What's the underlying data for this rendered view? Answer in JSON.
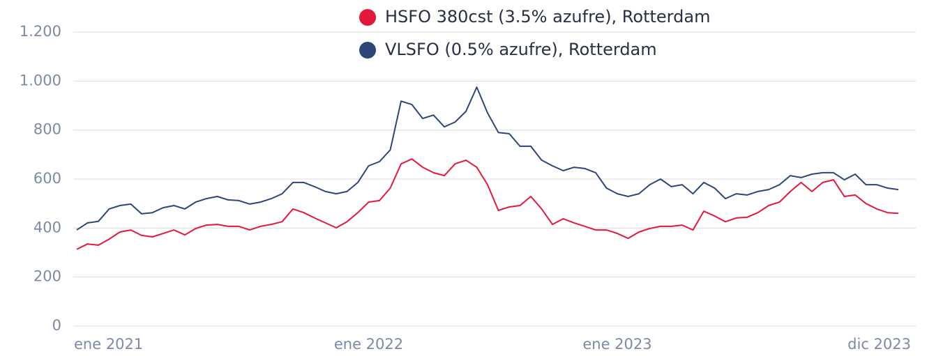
{
  "chart_data": {
    "type": "line",
    "categories": [
      "ene 2021",
      null,
      null,
      null,
      null,
      null,
      null,
      null,
      null,
      null,
      null,
      null,
      null,
      null,
      null,
      null,
      null,
      null,
      null,
      null,
      null,
      null,
      null,
      null,
      null,
      null,
      null,
      "ene 2022",
      null,
      null,
      null,
      null,
      null,
      null,
      null,
      null,
      null,
      null,
      null,
      null,
      null,
      null,
      null,
      null,
      null,
      null,
      null,
      null,
      null,
      null,
      "ene 2023",
      null,
      null,
      null,
      null,
      null,
      null,
      null,
      null,
      null,
      null,
      null,
      null,
      null,
      null,
      null,
      null,
      null,
      null,
      null,
      null,
      null,
      null,
      null,
      null,
      null,
      "dic 2023"
    ],
    "series": [
      {
        "name": "HSFO 380cst (3.5% azufre), Rotterdam",
        "color": "#e5173c",
        "values": [
          313,
          335,
          330,
          355,
          384,
          392,
          370,
          364,
          378,
          392,
          372,
          398,
          412,
          415,
          407,
          407,
          392,
          407,
          415,
          426,
          478,
          463,
          441,
          421,
          401,
          426,
          463,
          506,
          512,
          563,
          662,
          682,
          648,
          626,
          614,
          662,
          677,
          648,
          577,
          472,
          486,
          492,
          529,
          478,
          415,
          438,
          421,
          407,
          392,
          392,
          378,
          358,
          384,
          398,
          407,
          407,
          412,
          392,
          469,
          449,
          426,
          441,
          444,
          463,
          492,
          506,
          549,
          586,
          549,
          586,
          597,
          529,
          535,
          500,
          478,
          463,
          460
        ]
      },
      {
        "name": "VLSFO (0.5% azufre), Rotterdam",
        "color": "#2e4577",
        "values": [
          392,
          421,
          427,
          478,
          492,
          498,
          458,
          463,
          483,
          492,
          478,
          506,
          520,
          529,
          515,
          512,
          498,
          506,
          520,
          540,
          586,
          586,
          569,
          549,
          540,
          549,
          586,
          654,
          671,
          719,
          918,
          904,
          847,
          861,
          813,
          833,
          876,
          975,
          870,
          790,
          785,
          734,
          734,
          677,
          654,
          634,
          648,
          643,
          626,
          563,
          540,
          529,
          540,
          577,
          600,
          569,
          577,
          540,
          586,
          563,
          520,
          540,
          535,
          549,
          557,
          577,
          614,
          606,
          620,
          626,
          626,
          597,
          620,
          577,
          577,
          563,
          557
        ]
      }
    ],
    "ylim": [
      0,
      1200
    ],
    "yticks": [
      0,
      200,
      400,
      600,
      800,
      {
        "value": 1000,
        "label": "1.000"
      },
      {
        "value": 1200,
        "label": "1.200"
      }
    ],
    "grid": true,
    "legend": "top"
  }
}
